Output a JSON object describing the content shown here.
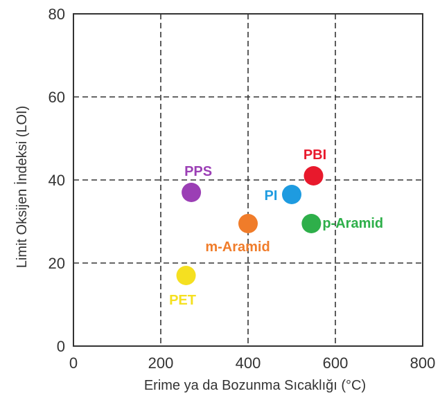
{
  "chart_data": {
    "type": "scatter",
    "xlabel": "Erime ya da Bozunma Sıcaklığı  (°C)",
    "ylabel": "Limit Oksijen İndeksi (LOI)",
    "xlim": [
      0,
      800
    ],
    "ylim": [
      0,
      80
    ],
    "xticks": [
      0,
      200,
      400,
      600,
      800
    ],
    "yticks": [
      0,
      20,
      40,
      60,
      80
    ],
    "grid": true,
    "points": [
      {
        "label": "PPS",
        "x": 270,
        "y": 37,
        "color": "#9b3fb5",
        "label_color": "#9b3fb5"
      },
      {
        "label": "PBI",
        "x": 550,
        "y": 41,
        "color": "#e8192c",
        "label_color": "#e8192c"
      },
      {
        "label": "PI",
        "x": 500,
        "y": 36.5,
        "color": "#1e9be0",
        "label_color": "#1e9be0"
      },
      {
        "label": "m-Aramid",
        "x": 400,
        "y": 29.5,
        "color": "#f07c2a",
        "label_color": "#f07c2a"
      },
      {
        "label": "p-Aramid",
        "x": 545,
        "y": 29.5,
        "color": "#2eaf4a",
        "label_color": "#2eaf4a"
      },
      {
        "label": "PET",
        "x": 258,
        "y": 17,
        "color": "#f5e020",
        "label_color": "#f5e020"
      }
    ]
  }
}
